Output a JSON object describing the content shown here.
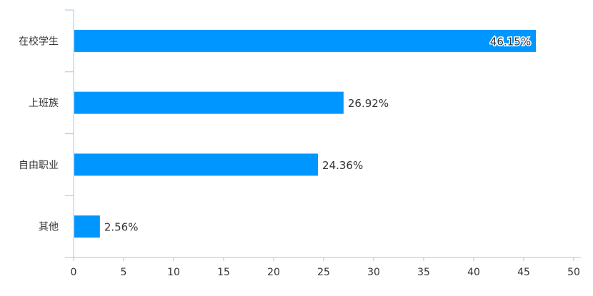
{
  "chart_data": {
    "type": "bar",
    "orientation": "horizontal",
    "categories": [
      "在校学生",
      "上班族",
      "自由职业",
      "其他"
    ],
    "values": [
      46.15,
      26.92,
      24.36,
      2.56
    ],
    "value_labels": [
      "46.15%",
      "26.92%",
      "24.36%",
      "2.56%"
    ],
    "xlim": [
      0,
      50
    ],
    "x_ticks": [
      0,
      5,
      10,
      15,
      20,
      25,
      30,
      35,
      40,
      45,
      50
    ],
    "bar_color": "#0096ff",
    "axis_color": "#a8c4dc",
    "grid": false,
    "title": "",
    "xlabel": "",
    "ylabel": ""
  }
}
